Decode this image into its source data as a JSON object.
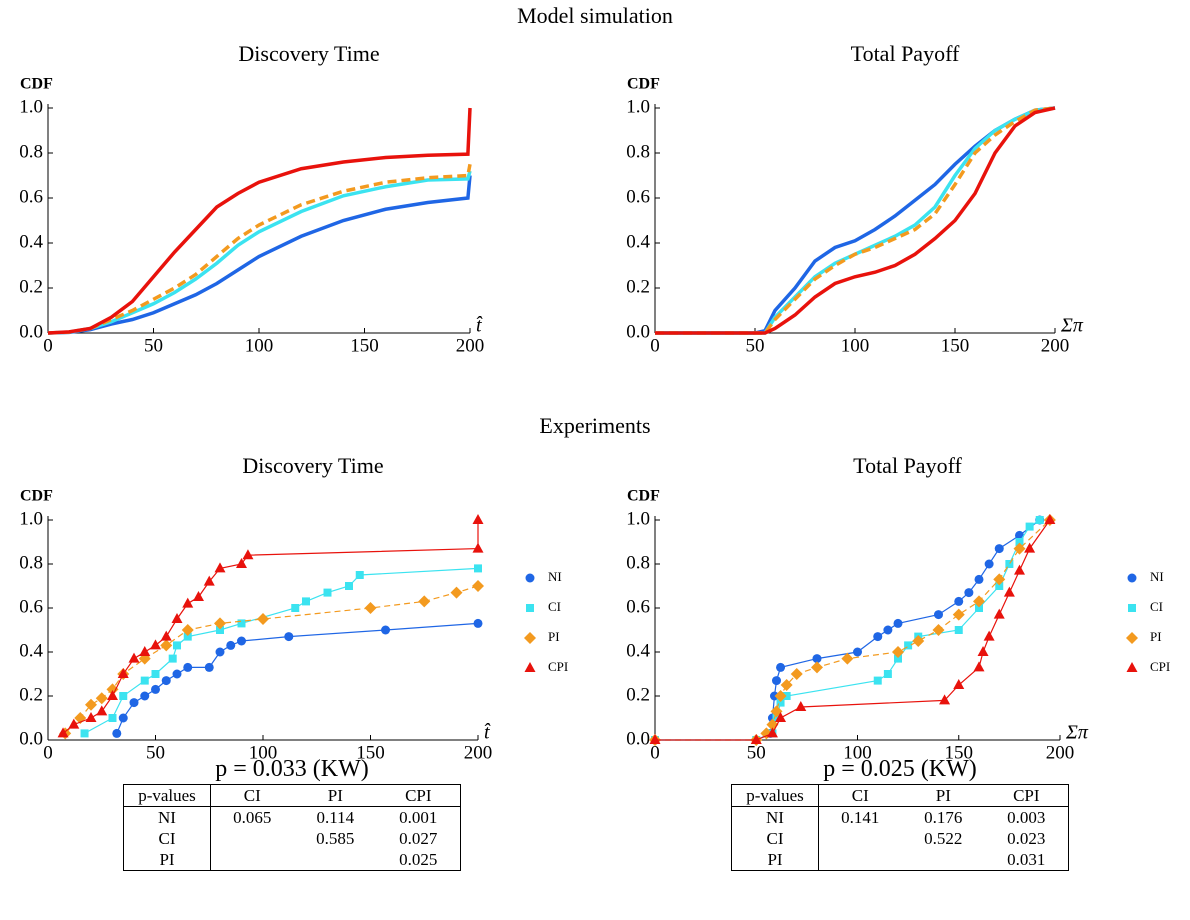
{
  "headings": [
    "Model simulation",
    "Experiments"
  ],
  "chart_data": [
    {
      "type": "line",
      "title": "Discovery Time",
      "ylabel": "CDF",
      "xlabel": "t̂",
      "x": [
        0,
        10,
        20,
        30,
        40,
        50,
        60,
        70,
        80,
        90,
        100,
        120,
        140,
        160,
        180,
        199,
        200
      ],
      "xlim": [
        0,
        200
      ],
      "xticks": [
        0,
        50,
        100,
        150,
        200
      ],
      "ylim": [
        0,
        1
      ],
      "yticks": [
        {
          "value": 0,
          "label": "0.0"
        },
        0.2,
        0.4,
        0.6,
        0.8,
        {
          "value": 1,
          "label": "1.0"
        }
      ],
      "series": [
        {
          "color": "#1f66e5",
          "values": [
            0,
            0.003,
            0.015,
            0.04,
            0.06,
            0.09,
            0.13,
            0.17,
            0.22,
            0.28,
            0.34,
            0.43,
            0.5,
            0.55,
            0.58,
            0.6,
            0.7
          ]
        },
        {
          "color": "#3be3f0",
          "values": [
            0,
            0.004,
            0.02,
            0.05,
            0.09,
            0.13,
            0.18,
            0.24,
            0.31,
            0.39,
            0.45,
            0.54,
            0.61,
            0.65,
            0.68,
            0.685,
            0.72
          ]
        },
        {
          "color": "#f39a1f",
          "dashed": true,
          "values": [
            0,
            0.004,
            0.02,
            0.06,
            0.1,
            0.15,
            0.2,
            0.26,
            0.34,
            0.42,
            0.48,
            0.57,
            0.63,
            0.67,
            0.69,
            0.7,
            0.75
          ]
        },
        {
          "color": "#e8120c",
          "values": [
            0,
            0.005,
            0.02,
            0.07,
            0.14,
            0.25,
            0.36,
            0.46,
            0.56,
            0.62,
            0.67,
            0.73,
            0.76,
            0.78,
            0.79,
            0.795,
            1
          ]
        }
      ]
    },
    {
      "type": "line",
      "title": "Total Payoff",
      "ylabel": "CDF",
      "xlabel": "Σπ",
      "x": [
        0,
        50,
        55,
        60,
        70,
        80,
        90,
        100,
        110,
        120,
        130,
        140,
        150,
        160,
        170,
        180,
        190,
        200
      ],
      "xlim": [
        0,
        200
      ],
      "xticks": [
        0,
        50,
        100,
        150,
        200
      ],
      "ylim": [
        0,
        1
      ],
      "yticks": [
        {
          "value": 0,
          "label": "0.0"
        },
        0.2,
        0.4,
        0.6,
        0.8,
        {
          "value": 1,
          "label": "1.0"
        }
      ],
      "series": [
        {
          "color": "#1f66e5",
          "values": [
            0,
            0,
            0.01,
            0.1,
            0.2,
            0.32,
            0.38,
            0.41,
            0.46,
            0.52,
            0.59,
            0.66,
            0.75,
            0.83,
            0.9,
            0.95,
            0.99,
            1
          ]
        },
        {
          "color": "#3be3f0",
          "values": [
            0,
            0,
            0,
            0.07,
            0.16,
            0.25,
            0.31,
            0.35,
            0.39,
            0.43,
            0.48,
            0.56,
            0.7,
            0.82,
            0.9,
            0.95,
            0.99,
            1
          ]
        },
        {
          "color": "#f39a1f",
          "dashed": true,
          "values": [
            0,
            0,
            0,
            0.06,
            0.15,
            0.24,
            0.3,
            0.35,
            0.38,
            0.42,
            0.46,
            0.53,
            0.66,
            0.8,
            0.88,
            0.94,
            0.99,
            1
          ]
        },
        {
          "color": "#e8120c",
          "values": [
            0,
            0,
            0,
            0.02,
            0.08,
            0.16,
            0.22,
            0.25,
            0.27,
            0.3,
            0.35,
            0.42,
            0.5,
            0.62,
            0.8,
            0.92,
            0.98,
            1
          ]
        }
      ]
    },
    {
      "type": "line",
      "title": "Discovery Time",
      "ylabel": "CDF",
      "xlabel": "t̂",
      "legend": "right",
      "xlim": [
        0,
        200
      ],
      "xticks": [
        0,
        50,
        100,
        150,
        200
      ],
      "ylim": [
        0,
        1
      ],
      "yticks": [
        {
          "value": 0,
          "label": "0.0"
        },
        0.2,
        0.4,
        0.6,
        0.8,
        {
          "value": 1,
          "label": "1.0"
        }
      ],
      "series": [
        {
          "name": "NI",
          "color": "#1f66e5",
          "marker": "circle",
          "x": [
            32,
            35,
            40,
            45,
            50,
            55,
            60,
            65,
            75,
            80,
            85,
            90,
            112,
            157,
            200
          ],
          "values": [
            0.03,
            0.1,
            0.17,
            0.2,
            0.23,
            0.27,
            0.3,
            0.33,
            0.33,
            0.4,
            0.43,
            0.45,
            0.47,
            0.5,
            0.53
          ]
        },
        {
          "name": "CI",
          "color": "#3be3f0",
          "marker": "square",
          "x": [
            17,
            30,
            35,
            45,
            50,
            58,
            60,
            65,
            80,
            90,
            115,
            120,
            130,
            140,
            145,
            200
          ],
          "values": [
            0.03,
            0.1,
            0.2,
            0.27,
            0.3,
            0.37,
            0.43,
            0.47,
            0.5,
            0.53,
            0.6,
            0.63,
            0.67,
            0.7,
            0.75,
            0.78
          ]
        },
        {
          "name": "PI",
          "color": "#f39a1f",
          "marker": "diamond",
          "dashed": true,
          "x": [
            8,
            15,
            20,
            25,
            30,
            35,
            45,
            55,
            65,
            80,
            100,
            150,
            175,
            190,
            200
          ],
          "values": [
            0.03,
            0.1,
            0.16,
            0.19,
            0.23,
            0.3,
            0.37,
            0.43,
            0.5,
            0.53,
            0.55,
            0.6,
            0.63,
            0.67,
            0.7
          ]
        },
        {
          "name": "CPI",
          "color": "#e8120c",
          "marker": "triangle",
          "x": [
            7,
            12,
            20,
            25,
            30,
            35,
            40,
            45,
            50,
            55,
            60,
            65,
            70,
            75,
            80,
            90,
            93,
            200,
            200
          ],
          "values": [
            0.03,
            0.07,
            0.1,
            0.13,
            0.2,
            0.3,
            0.37,
            0.4,
            0.43,
            0.47,
            0.55,
            0.62,
            0.65,
            0.72,
            0.78,
            0.8,
            0.84,
            0.87,
            1
          ]
        }
      ]
    },
    {
      "type": "line",
      "title": "Total Payoff",
      "ylabel": "CDF",
      "xlabel": "Σπ",
      "legend": "right",
      "xlim": [
        0,
        200
      ],
      "xticks": [
        0,
        50,
        100,
        150,
        200
      ],
      "ylim": [
        0,
        1
      ],
      "yticks": [
        {
          "value": 0,
          "label": "0.0"
        },
        0.2,
        0.4,
        0.6,
        0.8,
        {
          "value": 1,
          "label": "1.0"
        }
      ],
      "series": [
        {
          "name": "NI",
          "color": "#1f66e5",
          "marker": "circle",
          "x": [
            0,
            50,
            57,
            58,
            59,
            60,
            62,
            80,
            100,
            110,
            115,
            120,
            140,
            150,
            155,
            160,
            165,
            170,
            180,
            190
          ],
          "values": [
            0,
            0,
            0.03,
            0.1,
            0.2,
            0.27,
            0.33,
            0.37,
            0.4,
            0.47,
            0.5,
            0.53,
            0.57,
            0.63,
            0.67,
            0.73,
            0.8,
            0.87,
            0.93,
            1
          ]
        },
        {
          "name": "CI",
          "color": "#3be3f0",
          "marker": "square",
          "x": [
            0,
            50,
            58,
            60,
            62,
            65,
            110,
            115,
            120,
            125,
            130,
            150,
            160,
            170,
            175,
            180,
            185,
            190
          ],
          "values": [
            0,
            0,
            0.03,
            0.1,
            0.17,
            0.2,
            0.27,
            0.3,
            0.37,
            0.43,
            0.47,
            0.5,
            0.6,
            0.7,
            0.8,
            0.9,
            0.97,
            1
          ]
        },
        {
          "name": "PI",
          "color": "#f39a1f",
          "marker": "diamond",
          "dashed": true,
          "x": [
            0,
            50,
            55,
            58,
            60,
            62,
            65,
            70,
            80,
            95,
            120,
            130,
            140,
            150,
            160,
            170,
            180,
            195
          ],
          "values": [
            0,
            0,
            0.03,
            0.07,
            0.13,
            0.2,
            0.25,
            0.3,
            0.33,
            0.37,
            0.4,
            0.45,
            0.5,
            0.57,
            0.63,
            0.73,
            0.87,
            1
          ]
        },
        {
          "name": "CPI",
          "color": "#e8120c",
          "marker": "triangle",
          "x": [
            0,
            50,
            58,
            62,
            72,
            143,
            150,
            160,
            162,
            165,
            170,
            175,
            180,
            185,
            195
          ],
          "values": [
            0,
            0,
            0.03,
            0.1,
            0.15,
            0.18,
            0.25,
            0.33,
            0.4,
            0.47,
            0.57,
            0.67,
            0.77,
            0.87,
            1
          ]
        }
      ]
    }
  ],
  "tests": [
    {
      "label": "p = 0.033 (KW)",
      "header": [
        "p-values",
        "CI",
        "PI",
        "CPI"
      ],
      "rows": [
        [
          "NI",
          0.065,
          0.114,
          0.001
        ],
        [
          "CI",
          null,
          0.585,
          0.027
        ],
        [
          "PI",
          null,
          null,
          0.025
        ]
      ]
    },
    {
      "label": "p = 0.025 (KW)",
      "header": [
        "p-values",
        "CI",
        "PI",
        "CPI"
      ],
      "rows": [
        [
          "NI",
          0.141,
          0.176,
          0.003
        ],
        [
          "CI",
          null,
          0.522,
          0.023
        ],
        [
          "PI",
          null,
          null,
          0.031
        ]
      ]
    }
  ]
}
